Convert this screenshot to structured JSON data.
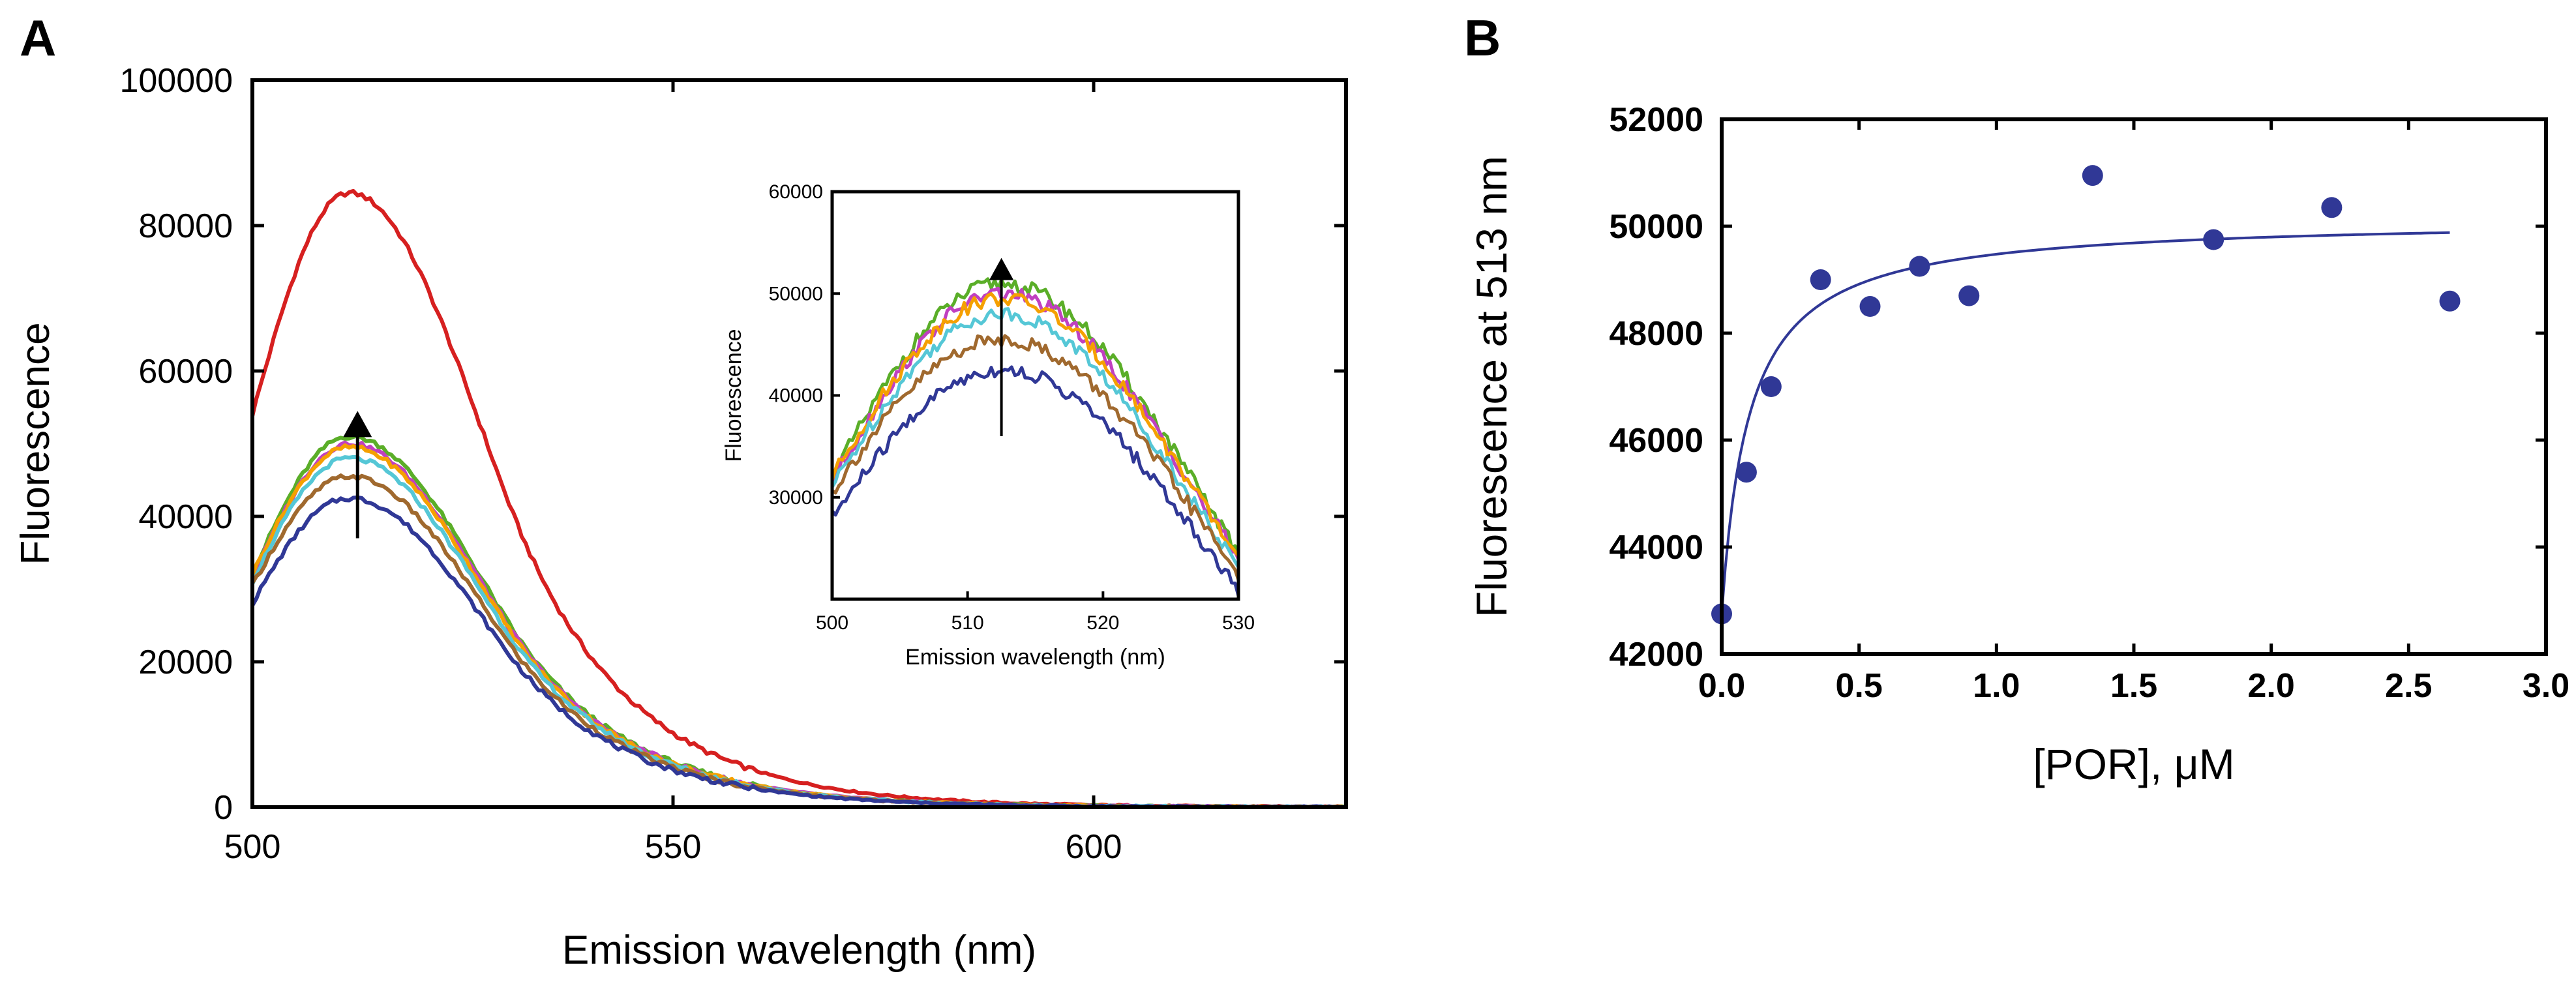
{
  "chart_data": [
    {
      "panel": "A",
      "type": "line",
      "title": "",
      "xlabel": "Emission wavelength (nm)",
      "ylabel": "Fluorescence",
      "xlim": [
        500,
        630
      ],
      "ylim": [
        0,
        100000
      ],
      "xticks": [
        500,
        550,
        600
      ],
      "yticks": [
        0,
        20000,
        40000,
        60000,
        80000,
        100000
      ],
      "arrow": {
        "x": 512.5,
        "y_from": 37000,
        "y_to": 54500
      },
      "series": [
        {
          "name": "red",
          "color": "#d62020",
          "peak": 84500,
          "start": 54000
        },
        {
          "name": "green",
          "color": "#5aae28",
          "peak": 51000,
          "start": 32000
        },
        {
          "name": "magenta",
          "color": "#c040c0",
          "peak": 50000,
          "start": 31500
        },
        {
          "name": "orange",
          "color": "#f5a000",
          "peak": 49500,
          "start": 32000
        },
        {
          "name": "cyan",
          "color": "#55c7d6",
          "peak": 48000,
          "start": 31000
        },
        {
          "name": "brown",
          "color": "#a0692e",
          "peak": 45500,
          "start": 30500
        },
        {
          "name": "navy",
          "color": "#303896",
          "peak": 42500,
          "start": 28000
        }
      ]
    },
    {
      "panel": "A-inset",
      "type": "line",
      "xlabel": "Emission wavelength (nm)",
      "ylabel": "Fluorescence",
      "xlim": [
        500,
        530
      ],
      "ylim": [
        20000,
        60000
      ],
      "xticks": [
        500,
        510,
        520,
        530
      ],
      "yticks": [
        30000,
        40000,
        50000,
        60000
      ],
      "arrow": {
        "x": 512.5,
        "y_from": 36000,
        "y_to": 53500
      },
      "series": [
        {
          "name": "green",
          "color": "#5aae28",
          "peak": 51000,
          "start": 32000,
          "end": 24500
        },
        {
          "name": "magenta",
          "color": "#c040c0",
          "peak": 50000,
          "start": 31500,
          "end": 24000
        },
        {
          "name": "orange",
          "color": "#f5a000",
          "peak": 49500,
          "start": 32000,
          "end": 24000
        },
        {
          "name": "cyan",
          "color": "#55c7d6",
          "peak": 48000,
          "start": 31000,
          "end": 23000
        },
        {
          "name": "brown",
          "color": "#a0692e",
          "peak": 45500,
          "start": 30500,
          "end": 22500
        },
        {
          "name": "navy",
          "color": "#303896",
          "peak": 42500,
          "start": 28000,
          "end": 21000
        }
      ]
    },
    {
      "panel": "B",
      "type": "scatter",
      "xlabel": "[POR], μM",
      "ylabel": "Fluorescence at 513 nm",
      "xlim": [
        0,
        3.0
      ],
      "ylim": [
        42000,
        52000
      ],
      "xticks": [
        "0.0",
        "0.5",
        "1.0",
        "1.5",
        "2.0",
        "2.5",
        "3.0"
      ],
      "yticks": [
        "42000",
        "44000",
        "46000",
        "48000",
        "50000",
        "52000"
      ],
      "points": [
        {
          "x": 0.0,
          "y": 42750
        },
        {
          "x": 0.09,
          "y": 45400
        },
        {
          "x": 0.18,
          "y": 47000
        },
        {
          "x": 0.36,
          "y": 49000
        },
        {
          "x": 0.54,
          "y": 48500
        },
        {
          "x": 0.72,
          "y": 49250
        },
        {
          "x": 0.9,
          "y": 48700
        },
        {
          "x": 1.35,
          "y": 50950
        },
        {
          "x": 1.79,
          "y": 49750
        },
        {
          "x": 2.22,
          "y": 50350
        },
        {
          "x": 2.65,
          "y": 48600
        }
      ],
      "fit": {
        "model": "hyperbolic",
        "y0": 42750,
        "amplitude": 7400,
        "kd": 0.1,
        "x_max": 2.65
      },
      "color": "#303896"
    }
  ],
  "panels": {
    "a_letter": "A",
    "b_letter": "B"
  }
}
